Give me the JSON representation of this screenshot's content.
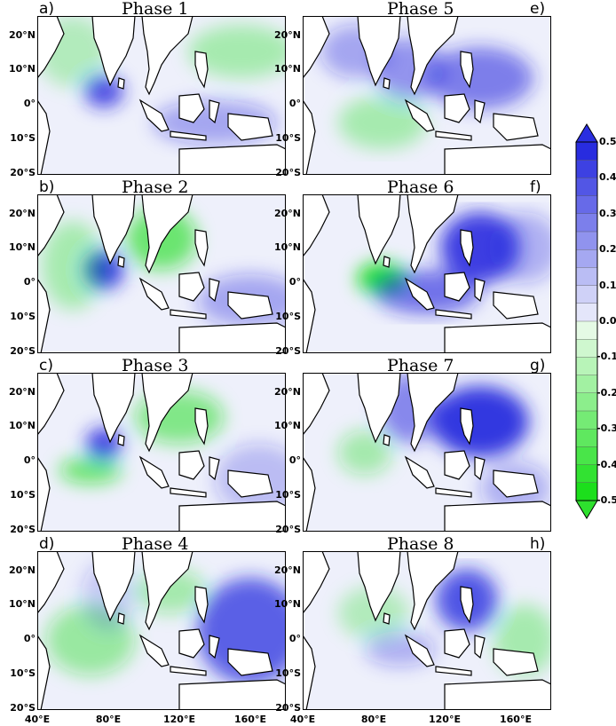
{
  "panels": [
    {
      "label": "a)",
      "title": "Phase 1"
    },
    {
      "label": "b)",
      "title": "Phase 2"
    },
    {
      "label": "c)",
      "title": "Phase 3"
    },
    {
      "label": "d)",
      "title": "Phase 4"
    },
    {
      "label": "e)",
      "title": "Phase 5"
    },
    {
      "label": "f)",
      "title": "Phase 6"
    },
    {
      "label": "g)",
      "title": "Phase 7"
    },
    {
      "label": "h)",
      "title": "Phase 8"
    }
  ],
  "axes": {
    "y_ticks": [
      "20°N",
      "10°N",
      "0°",
      "10°S",
      "20°S"
    ],
    "x_ticks": [
      "40°E",
      "80°E",
      "120°E",
      "160°E"
    ]
  },
  "colorbar": {
    "ticks": [
      "0.5",
      "0.4",
      "0.3",
      "0.2",
      "0.1",
      "0.0",
      "-0.1",
      "-0.2",
      "-0.3",
      "-0.4",
      "-0.5"
    ],
    "range": [
      -0.5,
      0.5
    ],
    "positive_color": "#1e22dd",
    "negative_color": "#11dd11"
  }
}
